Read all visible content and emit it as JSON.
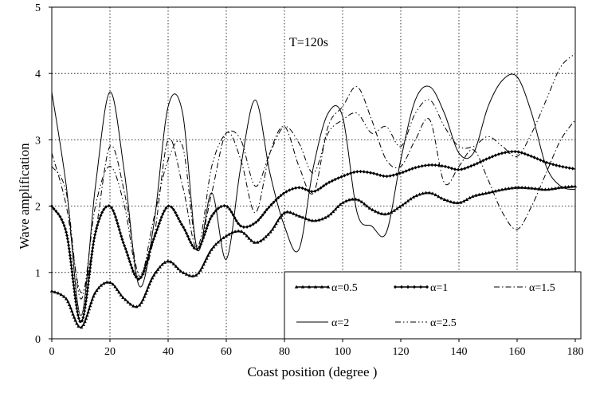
{
  "chart_data": {
    "type": "line",
    "title": "",
    "annotation": "T=120s",
    "xlabel": "Coast  position (degree )",
    "ylabel": "Wave  amplification",
    "xlim": [
      0,
      180
    ],
    "ylim": [
      0,
      5
    ],
    "xticks": [
      0,
      20,
      40,
      60,
      80,
      100,
      120,
      140,
      160,
      180
    ],
    "yticks": [
      0,
      1,
      2,
      3,
      4,
      5
    ],
    "xtick_labels": [
      "0",
      "20",
      "40",
      "60",
      "80",
      "100",
      "120",
      "140",
      "160",
      "180"
    ],
    "ytick_labels": [
      "0",
      "1",
      "2",
      "3",
      "4",
      "5"
    ],
    "grid": "dotted",
    "legend_position": "lower-right",
    "series": [
      {
        "name": "α=0.5",
        "style": "triangle-marker",
        "x": [
          0,
          5,
          10,
          15,
          20,
          25,
          30,
          35,
          40,
          45,
          50,
          55,
          60,
          65,
          70,
          75,
          80,
          85,
          90,
          95,
          100,
          105,
          110,
          115,
          120,
          125,
          130,
          135,
          140,
          145,
          150,
          155,
          160,
          165,
          170,
          175,
          180
        ],
        "values": [
          0.72,
          0.6,
          0.17,
          0.7,
          0.85,
          0.6,
          0.5,
          0.95,
          1.17,
          1.0,
          0.97,
          1.35,
          1.55,
          1.62,
          1.45,
          1.6,
          1.9,
          1.85,
          1.78,
          1.85,
          2.05,
          2.1,
          1.95,
          1.88,
          2.0,
          2.15,
          2.2,
          2.1,
          2.05,
          2.15,
          2.2,
          2.25,
          2.28,
          2.27,
          2.25,
          2.28,
          2.3
        ]
      },
      {
        "name": "α=1",
        "style": "diamond-marker",
        "x": [
          0,
          5,
          10,
          15,
          20,
          25,
          30,
          35,
          40,
          45,
          50,
          55,
          60,
          65,
          70,
          75,
          80,
          85,
          90,
          95,
          100,
          105,
          110,
          115,
          120,
          125,
          130,
          135,
          140,
          145,
          150,
          155,
          160,
          165,
          170,
          175,
          180
        ],
        "values": [
          2.0,
          1.6,
          0.25,
          1.6,
          2.0,
          1.4,
          0.9,
          1.5,
          2.0,
          1.7,
          1.35,
          1.85,
          2.0,
          1.7,
          1.75,
          2.0,
          2.2,
          2.28,
          2.22,
          2.35,
          2.45,
          2.52,
          2.5,
          2.45,
          2.5,
          2.58,
          2.62,
          2.6,
          2.55,
          2.62,
          2.72,
          2.8,
          2.82,
          2.75,
          2.66,
          2.6,
          2.56
        ]
      },
      {
        "name": "α=1.5",
        "style": "dash-dot",
        "x": [
          0,
          5,
          10,
          15,
          20,
          25,
          30,
          35,
          40,
          45,
          50,
          55,
          60,
          65,
          70,
          75,
          80,
          85,
          90,
          95,
          100,
          105,
          110,
          115,
          120,
          125,
          130,
          135,
          140,
          145,
          150,
          155,
          160,
          165,
          170,
          175,
          180
        ],
        "values": [
          2.8,
          2.0,
          0.7,
          1.6,
          2.9,
          2.2,
          0.95,
          1.5,
          3.0,
          2.3,
          1.35,
          2.2,
          3.1,
          2.7,
          1.9,
          2.8,
          3.2,
          2.6,
          2.2,
          3.2,
          3.5,
          3.8,
          3.3,
          2.7,
          2.6,
          3.0,
          3.3,
          2.35,
          2.6,
          2.85,
          2.4,
          1.9,
          1.65,
          2.0,
          2.5,
          3.0,
          3.3
        ]
      },
      {
        "name": "α=2",
        "style": "solid",
        "x": [
          0,
          5,
          10,
          15,
          20,
          25,
          30,
          35,
          40,
          45,
          50,
          55,
          60,
          65,
          70,
          75,
          80,
          85,
          90,
          95,
          100,
          105,
          110,
          115,
          120,
          125,
          130,
          135,
          140,
          145,
          150,
          155,
          160,
          165,
          170,
          175,
          180
        ],
        "values": [
          3.72,
          2.3,
          0.35,
          2.3,
          3.72,
          2.5,
          0.8,
          1.7,
          3.5,
          3.4,
          1.35,
          2.2,
          1.2,
          2.6,
          3.6,
          2.5,
          1.7,
          1.35,
          2.6,
          3.4,
          3.35,
          1.9,
          1.7,
          1.6,
          2.7,
          3.6,
          3.8,
          3.4,
          2.8,
          2.8,
          3.5,
          3.9,
          3.95,
          3.4,
          2.6,
          2.3,
          2.25
        ]
      },
      {
        "name": "α=2.5",
        "style": "dash-dot-dot",
        "x": [
          0,
          5,
          10,
          15,
          20,
          25,
          30,
          35,
          40,
          45,
          50,
          55,
          60,
          65,
          70,
          75,
          80,
          85,
          90,
          95,
          100,
          105,
          110,
          115,
          120,
          125,
          130,
          135,
          140,
          145,
          150,
          155,
          160,
          165,
          170,
          175,
          180
        ],
        "values": [
          2.6,
          2.2,
          0.6,
          2.0,
          2.6,
          2.0,
          0.9,
          1.8,
          2.7,
          2.9,
          1.4,
          2.6,
          3.1,
          3.0,
          2.3,
          2.8,
          3.2,
          2.95,
          2.5,
          3.1,
          3.3,
          3.4,
          3.1,
          3.2,
          2.9,
          3.4,
          3.6,
          3.2,
          2.9,
          2.9,
          3.05,
          2.9,
          2.75,
          3.1,
          3.6,
          4.1,
          4.3
        ]
      }
    ]
  }
}
